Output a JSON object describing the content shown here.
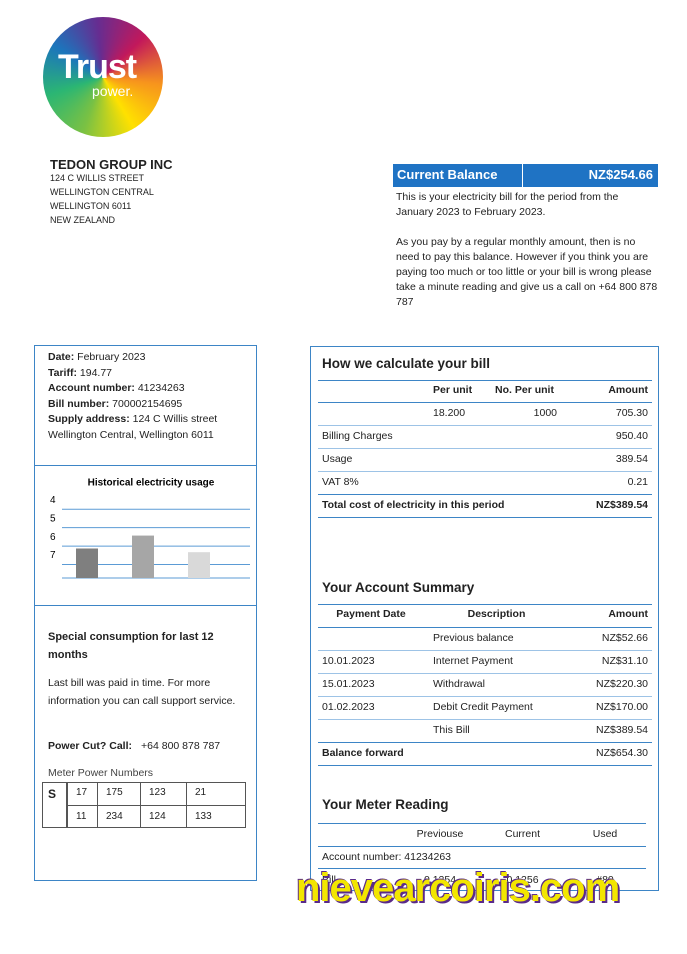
{
  "logo": {
    "main": "Trust",
    "sub": "power."
  },
  "customer": {
    "name": "TEDON GROUP INC",
    "address": [
      "124 C WILLIS STREET",
      "WELLINGTON CENTRAL",
      "WELLINGTON 6011",
      "NEW ZEALAND"
    ]
  },
  "balance": {
    "label": "Current Balance",
    "amount": "NZ$254.66",
    "paragraphs": [
      "This is your electricity bill for the period from the January 2023 to February 2023.",
      "As you pay by a regular monthly amount, then is no need to pay this balance. However if you think you are paying too much or too little or your bill is wrong please take a minute reading and give us a call on +64 800 878 787"
    ]
  },
  "details": [
    {
      "label": "Date:",
      "value": "February 2023"
    },
    {
      "label": "Tariff:",
      "value": "194.77"
    },
    {
      "label": "Account number:",
      "value": "41234263"
    },
    {
      "label": "Bill number:",
      "value": "700002154695"
    },
    {
      "label": "Supply address:",
      "value": "124 C Willis street Wellington Central, Wellington 6011"
    }
  ],
  "usage_chart": {
    "type": "bar",
    "title": "Historical electricity usage",
    "values": [
      6.4,
      5.7,
      6.6
    ],
    "colors": [
      "#7f7f7f",
      "#a6a6a6",
      "#d9d9d9"
    ],
    "ylim": [
      8,
      3.5
    ],
    "yticks": [
      4,
      5,
      6,
      7
    ],
    "grid": true
  },
  "special": {
    "title": "Special consumption for last 12 months",
    "paragraph": "Last bill was paid in time. For more information you can call support service.",
    "power_cut_label": "Power Cut? Call:",
    "power_cut_number": "+64 800 878 787"
  },
  "meter_numbers": {
    "title": "Meter Power Numbers",
    "label": "S",
    "rows": [
      [
        "17",
        "175",
        "123",
        "21"
      ],
      [
        "11",
        "234",
        "124",
        "133"
      ]
    ]
  },
  "calc": {
    "title": "How we calculate your bill",
    "headers": [
      "Per unit",
      "No. Per unit",
      "Amount"
    ],
    "unit_row": [
      "18.200",
      "1000",
      "705.30"
    ],
    "rows": [
      {
        "label": "Billing Charges",
        "amount": "950.40"
      },
      {
        "label": "Usage",
        "amount": "389.54"
      },
      {
        "label": "VAT 8%",
        "amount": "0.21"
      }
    ],
    "total": {
      "label": "Total cost of electricity in this period",
      "amount": "NZ$389.54"
    }
  },
  "summary": {
    "title": "Your Account Summary",
    "headers": [
      "Payment Date",
      "Description",
      "Amount"
    ],
    "rows": [
      {
        "description": "Previous balance",
        "amount": "NZ$52.66"
      },
      {
        "date": "10.01.2023",
        "description": "Internet Payment",
        "amount": "NZ$31.10"
      },
      {
        "date": "15.01.2023",
        "description": "Withdrawal",
        "amount": "NZ$220.30"
      },
      {
        "date": "01.02.2023",
        "description": "Debit Credit Payment",
        "amount": "NZ$170.00"
      },
      {
        "description": "This Bill",
        "amount": "NZ$389.54"
      }
    ],
    "balance_forward": {
      "label": "Balance forward",
      "amount": "NZ$654.30"
    }
  },
  "meter_reading": {
    "title": "Your Meter Reading",
    "headers": [
      "Previouse",
      "Current",
      "Used"
    ],
    "account": "Account number: 41234263",
    "row": [
      "Bill",
      "0.1254",
      "0.1256",
      "#80"
    ]
  },
  "watermark": "nievearcoiris.com"
}
